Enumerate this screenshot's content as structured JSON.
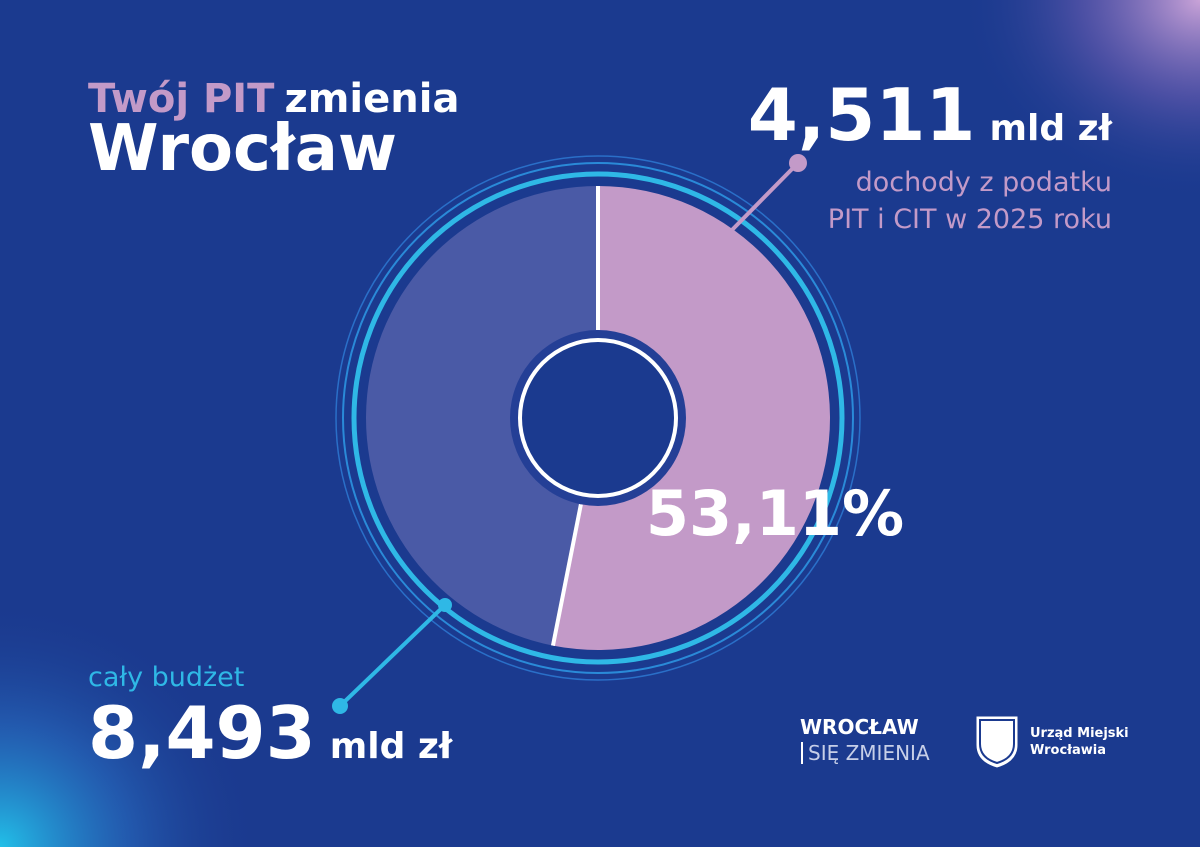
{
  "chart_data": {
    "type": "pie",
    "title_parts": [
      "Twój PIT",
      "zmienia"
    ],
    "subtitle": "Wrocław",
    "values": [
      53.11,
      46.89
    ],
    "value_labels": [
      "53,11%",
      null
    ],
    "colors": [
      "#c39ac8",
      "#4a5aa6"
    ],
    "annotations": [
      {
        "amount": "4,511",
        "unit": "mld zł",
        "lines": [
          "dochody z podatku",
          "PIT i CIT w 2025 roku"
        ]
      },
      {
        "amount": "8,493",
        "unit": "mld zł",
        "lines": [
          "cały budżet"
        ]
      }
    ]
  },
  "logos": {
    "campaign": [
      "WROCŁAW",
      "SIĘ ZMIENIA"
    ],
    "office": [
      "Urząd Miejski",
      "Wrocławia"
    ]
  }
}
